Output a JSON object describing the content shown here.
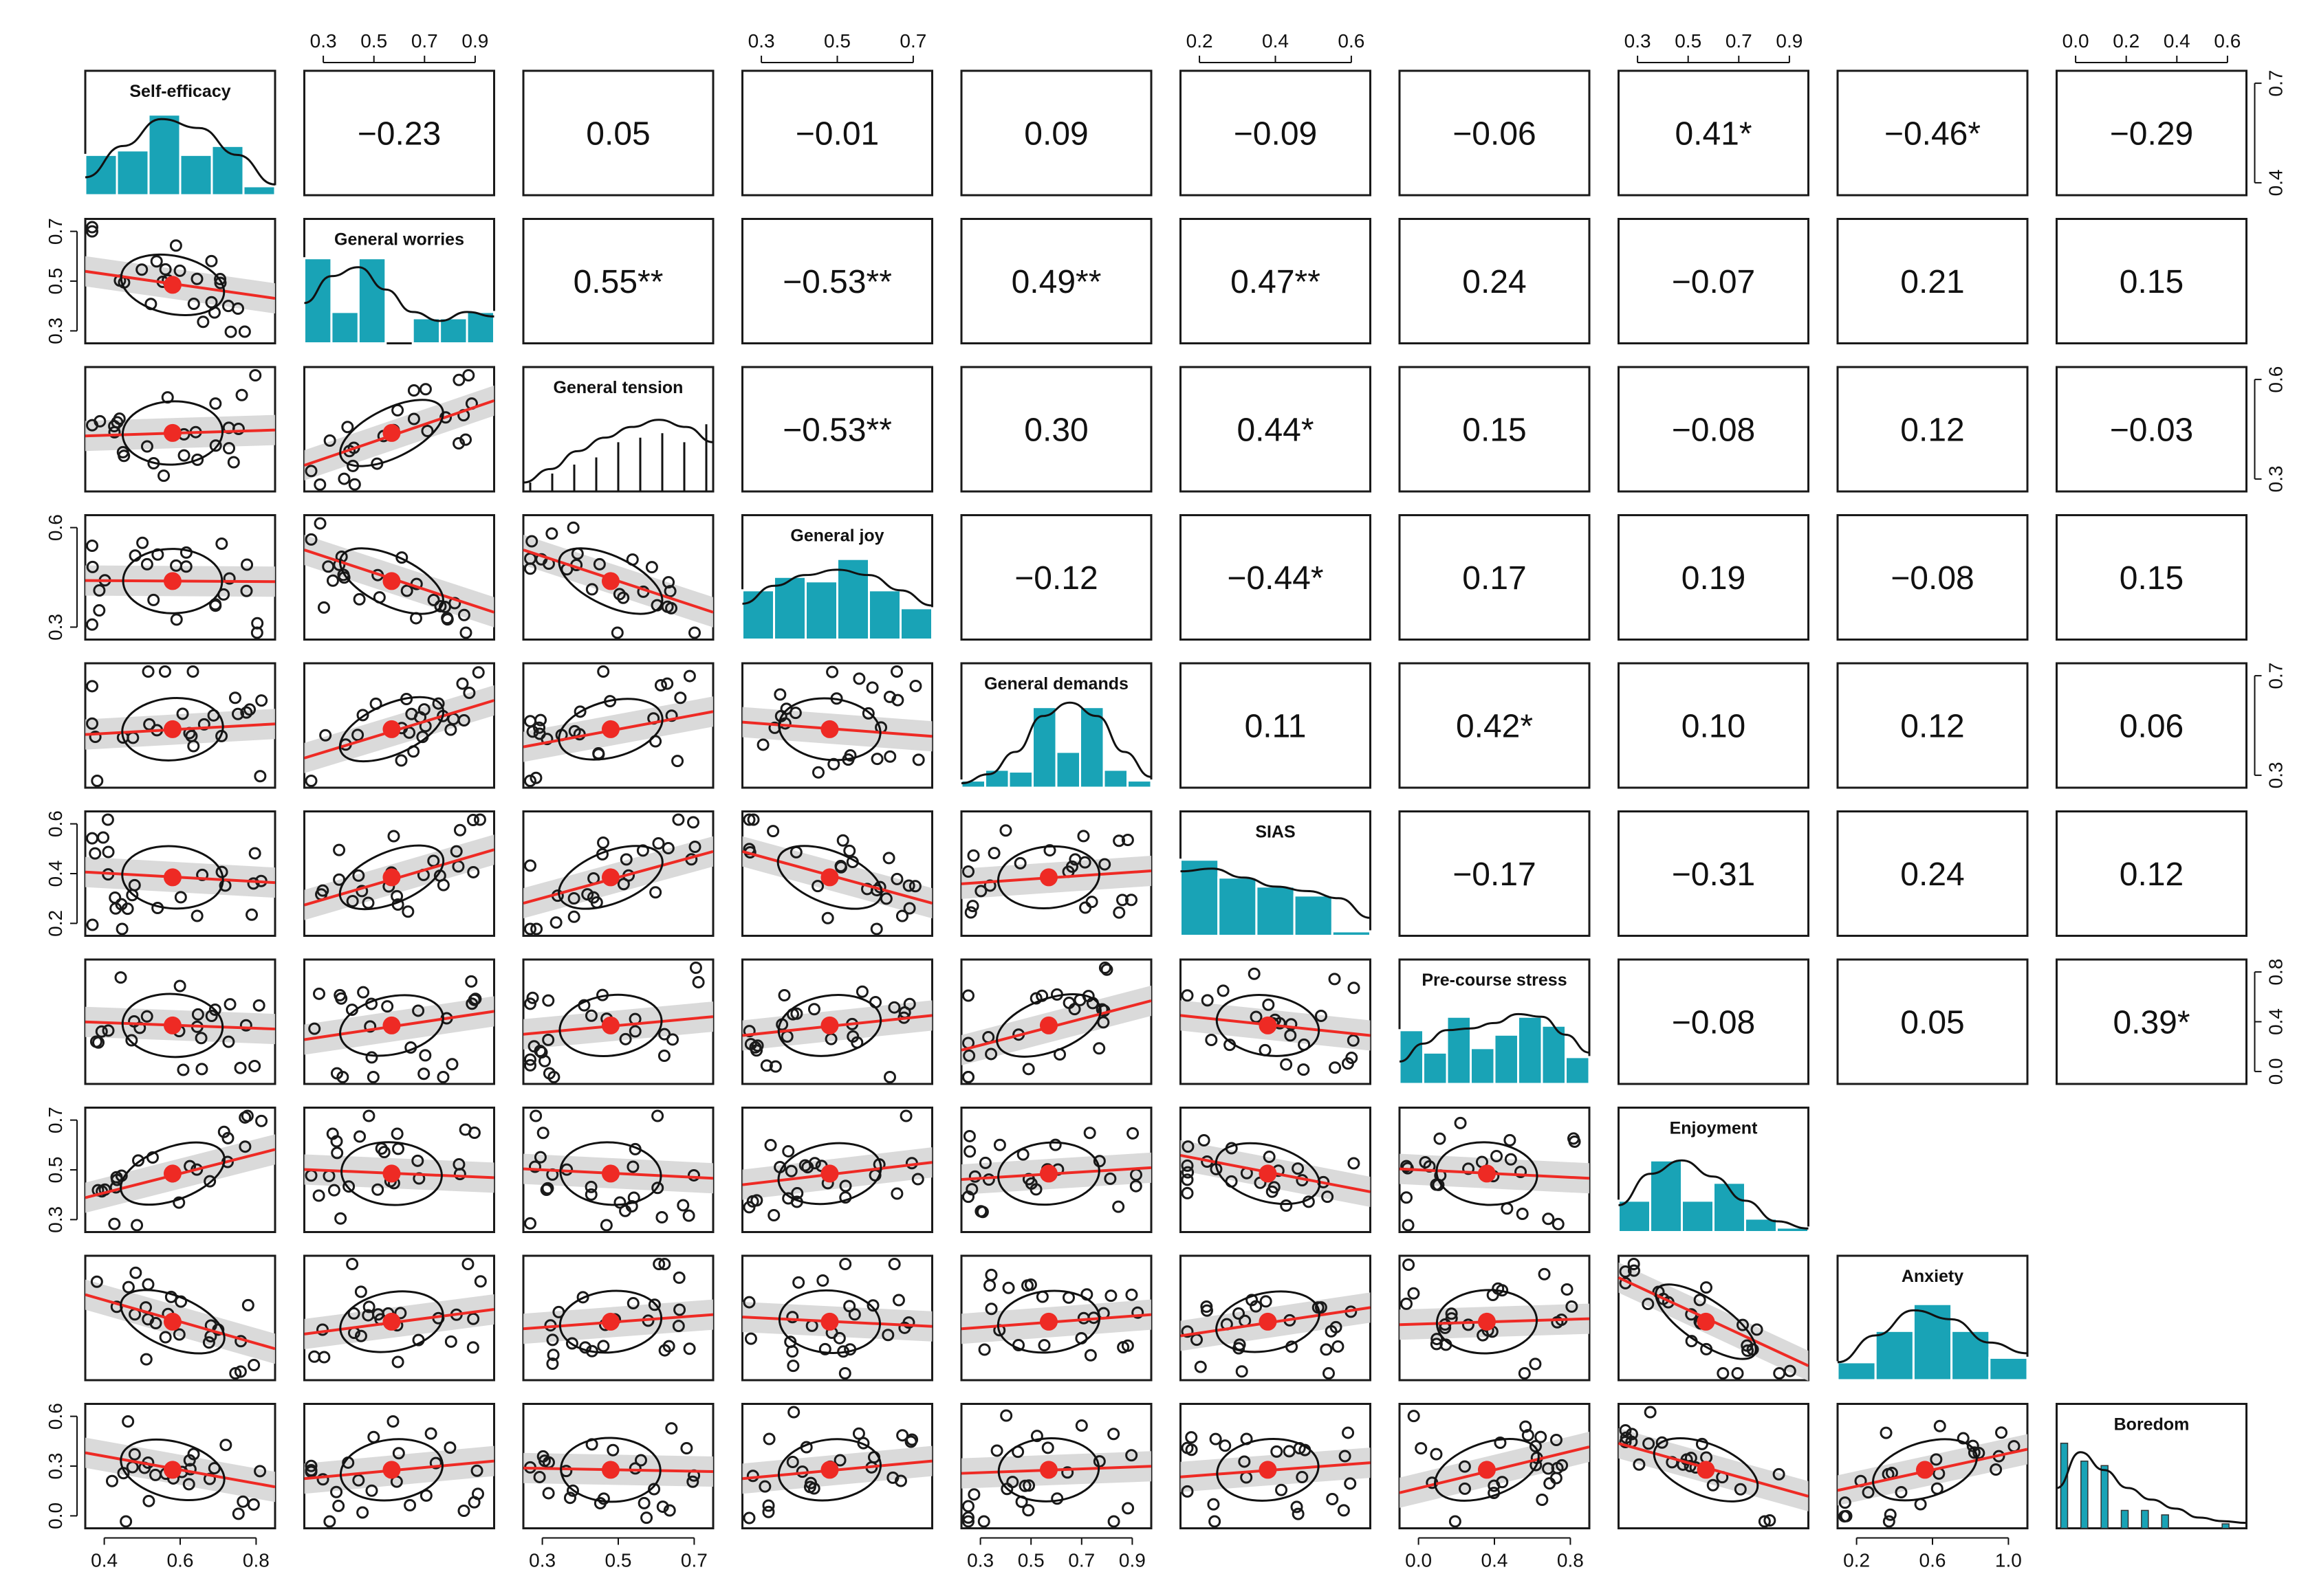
{
  "figure": {
    "variables": [
      "Self-efficacy",
      "General worries",
      "General tension",
      "General joy",
      "General demands",
      "SIAS",
      "Pre-course stress",
      "Enjoyment",
      "Anxiety",
      "Boredom"
    ]
  },
  "colors": {
    "bar": "#19a3b6",
    "fit_line": "#ee2a24",
    "center_point": "#ee2a24",
    "ci_band": "#d6d6d6",
    "points": "#1a1a1a",
    "frame": "#1a1a1a"
  },
  "chart_data": {
    "type": "scatter",
    "subtype": "scatterplot-matrix (pairs panels)",
    "grid": false,
    "correlations_upper": [
      [
        "",
        "-0.23",
        "0.05",
        "-0.01",
        "0.09",
        "-0.09",
        "-0.06",
        "0.41*",
        "-0.46*",
        "-0.29"
      ],
      [
        "",
        "",
        "0.55**",
        "-0.53**",
        "0.49**",
        "0.47**",
        "0.24",
        "-0.07",
        "0.21",
        "0.15"
      ],
      [
        "",
        "",
        "",
        "-0.53**",
        "0.30",
        "0.44*",
        "0.15",
        "-0.08",
        "0.12",
        "-0.03"
      ],
      [
        "",
        "",
        "",
        "",
        "-0.12",
        "-0.44*",
        "0.17",
        "0.19",
        "-0.08",
        "0.15"
      ],
      [
        "",
        "",
        "",
        "",
        "",
        "0.11",
        "0.42*",
        "0.10",
        "0.12",
        "0.06"
      ],
      [
        "",
        "",
        "",
        "",
        "",
        "",
        "-0.17",
        "-0.31",
        "0.24",
        "0.12"
      ],
      [
        "",
        "",
        "",
        "",
        "",
        "",
        "",
        "-0.08",
        "0.05",
        "0.39*"
      ],
      [
        "",
        "",
        "",
        "",
        "",
        "",
        "",
        "",
        "",
        ""
      ],
      [
        "",
        "",
        "",
        "",
        "",
        "",
        "",
        "",
        "",
        ""
      ],
      [
        "",
        "",
        "",
        "",
        "",
        "",
        "",
        "",
        "",
        ""
      ]
    ],
    "diagonal": [
      {
        "label": "Self-efficacy",
        "type": "histogram",
        "bars": [
          0.45,
          0.5,
          0.9,
          0.45,
          0.55,
          0.1
        ],
        "density": [
          0.2,
          0.55,
          0.85,
          0.75,
          0.45,
          0.12
        ]
      },
      {
        "label": "General worries",
        "type": "histogram",
        "bars": [
          0.95,
          0.35,
          0.95,
          0.0,
          0.28,
          0.28,
          0.35
        ],
        "density": [
          0.45,
          0.75,
          0.85,
          0.6,
          0.35,
          0.25,
          0.35,
          0.3
        ]
      },
      {
        "label": "General tension",
        "type": "histogram",
        "bars": [
          0.1,
          0.2,
          0.3,
          0.38,
          0.55,
          0.6,
          0.65,
          0.55,
          0.75
        ],
        "density": [
          0.1,
          0.25,
          0.45,
          0.6,
          0.72,
          0.8,
          0.72,
          0.55
        ]
      },
      {
        "label": "General joy",
        "type": "histogram",
        "bars": [
          0.55,
          0.7,
          0.65,
          0.9,
          0.55,
          0.35
        ],
        "density": [
          0.4,
          0.6,
          0.72,
          0.78,
          0.72,
          0.55,
          0.38
        ]
      },
      {
        "label": "General demands",
        "type": "histogram",
        "bars": [
          0.08,
          0.2,
          0.18,
          0.9,
          0.4,
          0.9,
          0.2,
          0.08
        ],
        "density": [
          0.05,
          0.15,
          0.4,
          0.8,
          0.95,
          0.8,
          0.4,
          0.12
        ]
      },
      {
        "label": "SIAS",
        "type": "histogram",
        "bars": [
          0.85,
          0.65,
          0.55,
          0.45,
          0.05
        ],
        "density": [
          0.72,
          0.75,
          0.65,
          0.55,
          0.5,
          0.42,
          0.2
        ]
      },
      {
        "label": "Pre-course stress",
        "type": "histogram",
        "bars": [
          0.6,
          0.35,
          0.75,
          0.4,
          0.55,
          0.75,
          0.65,
          0.3
        ],
        "density": [
          0.25,
          0.45,
          0.6,
          0.62,
          0.68,
          0.78,
          0.75,
          0.55,
          0.35
        ]
      },
      {
        "label": "Enjoyment",
        "type": "histogram",
        "bars": [
          0.35,
          0.8,
          0.35,
          0.55,
          0.15,
          0.05
        ],
        "density": [
          0.3,
          0.65,
          0.8,
          0.62,
          0.35,
          0.12,
          0.04
        ]
      },
      {
        "label": "Anxiety",
        "type": "histogram",
        "bars": [
          0.2,
          0.55,
          0.85,
          0.55,
          0.25
        ],
        "density": [
          0.2,
          0.5,
          0.78,
          0.68,
          0.42,
          0.3
        ]
      },
      {
        "label": "Boredom",
        "type": "histogram",
        "bars": [
          0.95,
          0.75,
          0.7,
          0.2,
          0.2,
          0.15,
          0.0,
          0.0,
          0.05
        ],
        "density": [
          0.45,
          0.85,
          0.65,
          0.45,
          0.32,
          0.22,
          0.12,
          0.08,
          0.06
        ]
      }
    ],
    "lower_panels": [
      {
        "row": 1,
        "col": 0,
        "slope": -0.23,
        "seed": 11
      },
      {
        "row": 2,
        "col": 0,
        "slope": 0.05,
        "seed": 12
      },
      {
        "row": 3,
        "col": 0,
        "slope": -0.01,
        "seed": 13
      },
      {
        "row": 4,
        "col": 0,
        "slope": 0.09,
        "seed": 14
      },
      {
        "row": 5,
        "col": 0,
        "slope": -0.09,
        "seed": 15
      },
      {
        "row": 6,
        "col": 0,
        "slope": -0.06,
        "seed": 16
      },
      {
        "row": 7,
        "col": 0,
        "slope": 0.41,
        "seed": 17
      },
      {
        "row": 8,
        "col": 0,
        "slope": -0.46,
        "seed": 18
      },
      {
        "row": 9,
        "col": 0,
        "slope": -0.29,
        "seed": 19
      },
      {
        "row": 2,
        "col": 1,
        "slope": 0.55,
        "seed": 21
      },
      {
        "row": 3,
        "col": 1,
        "slope": -0.53,
        "seed": 22
      },
      {
        "row": 4,
        "col": 1,
        "slope": 0.49,
        "seed": 23
      },
      {
        "row": 5,
        "col": 1,
        "slope": 0.47,
        "seed": 24
      },
      {
        "row": 6,
        "col": 1,
        "slope": 0.24,
        "seed": 25
      },
      {
        "row": 7,
        "col": 1,
        "slope": -0.07,
        "seed": 26
      },
      {
        "row": 8,
        "col": 1,
        "slope": 0.21,
        "seed": 27
      },
      {
        "row": 9,
        "col": 1,
        "slope": 0.15,
        "seed": 28
      },
      {
        "row": 3,
        "col": 2,
        "slope": -0.53,
        "seed": 31
      },
      {
        "row": 4,
        "col": 2,
        "slope": 0.3,
        "seed": 32
      },
      {
        "row": 5,
        "col": 2,
        "slope": 0.44,
        "seed": 33
      },
      {
        "row": 6,
        "col": 2,
        "slope": 0.15,
        "seed": 34
      },
      {
        "row": 7,
        "col": 2,
        "slope": -0.08,
        "seed": 35
      },
      {
        "row": 8,
        "col": 2,
        "slope": 0.12,
        "seed": 36
      },
      {
        "row": 9,
        "col": 2,
        "slope": -0.03,
        "seed": 37
      },
      {
        "row": 4,
        "col": 3,
        "slope": -0.12,
        "seed": 41
      },
      {
        "row": 5,
        "col": 3,
        "slope": -0.44,
        "seed": 42
      },
      {
        "row": 6,
        "col": 3,
        "slope": 0.17,
        "seed": 43
      },
      {
        "row": 7,
        "col": 3,
        "slope": 0.19,
        "seed": 44
      },
      {
        "row": 8,
        "col": 3,
        "slope": -0.08,
        "seed": 45
      },
      {
        "row": 9,
        "col": 3,
        "slope": 0.15,
        "seed": 46
      },
      {
        "row": 5,
        "col": 4,
        "slope": 0.11,
        "seed": 51
      },
      {
        "row": 6,
        "col": 4,
        "slope": 0.42,
        "seed": 52
      },
      {
        "row": 7,
        "col": 4,
        "slope": 0.1,
        "seed": 53
      },
      {
        "row": 8,
        "col": 4,
        "slope": 0.12,
        "seed": 54
      },
      {
        "row": 9,
        "col": 4,
        "slope": 0.06,
        "seed": 55
      },
      {
        "row": 6,
        "col": 5,
        "slope": -0.17,
        "seed": 61
      },
      {
        "row": 7,
        "col": 5,
        "slope": -0.31,
        "seed": 62
      },
      {
        "row": 8,
        "col": 5,
        "slope": 0.24,
        "seed": 63
      },
      {
        "row": 9,
        "col": 5,
        "slope": 0.12,
        "seed": 64
      },
      {
        "row": 7,
        "col": 6,
        "slope": -0.08,
        "seed": 71
      },
      {
        "row": 8,
        "col": 6,
        "slope": 0.05,
        "seed": 72
      },
      {
        "row": 9,
        "col": 6,
        "slope": 0.39,
        "seed": 73
      },
      {
        "row": 8,
        "col": 7,
        "slope": -0.75,
        "seed": 81
      },
      {
        "row": 9,
        "col": 7,
        "slope": -0.45,
        "seed": 82
      },
      {
        "row": 9,
        "col": 8,
        "slope": 0.35,
        "seed": 91
      }
    ],
    "axes": {
      "top": [
        {
          "col": 1,
          "ticks": [
            "0.3",
            "0.5",
            "0.7",
            "0.9"
          ]
        },
        {
          "col": 3,
          "ticks": [
            "0.3",
            "0.5",
            "0.7"
          ]
        },
        {
          "col": 5,
          "ticks": [
            "0.2",
            "0.4",
            "0.6"
          ]
        },
        {
          "col": 7,
          "ticks": [
            "0.3",
            "0.5",
            "0.7",
            "0.9"
          ]
        },
        {
          "col": 9,
          "ticks": [
            "0.0",
            "0.2",
            "0.4",
            "0.6"
          ]
        }
      ],
      "bottom": [
        {
          "col": 0,
          "ticks": [
            "0.4",
            "0.6",
            "0.8"
          ]
        },
        {
          "col": 2,
          "ticks": [
            "0.3",
            "0.5",
            "0.7"
          ]
        },
        {
          "col": 4,
          "ticks": [
            "0.3",
            "0.5",
            "0.7",
            "0.9"
          ]
        },
        {
          "col": 6,
          "ticks": [
            "0.0",
            "0.4",
            "0.8"
          ]
        },
        {
          "col": 8,
          "ticks": [
            "0.2",
            "0.6",
            "1.0"
          ]
        }
      ],
      "left": [
        {
          "row": 1,
          "ticks": [
            "0.3",
            "0.5",
            "0.7"
          ]
        },
        {
          "row": 3,
          "ticks": [
            "0.3",
            "0.6"
          ]
        },
        {
          "row": 5,
          "ticks": [
            "0.2",
            "0.4",
            "0.6"
          ]
        },
        {
          "row": 7,
          "ticks": [
            "0.3",
            "0.5",
            "0.7"
          ]
        },
        {
          "row": 9,
          "ticks": [
            "0.0",
            "0.3",
            "0.6"
          ]
        }
      ],
      "right": [
        {
          "row": 0,
          "ticks": [
            "0.4",
            "0.7"
          ]
        },
        {
          "row": 2,
          "ticks": [
            "0.3",
            "0.6"
          ]
        },
        {
          "row": 4,
          "ticks": [
            "0.3",
            "0.7"
          ]
        },
        {
          "row": 6,
          "ticks": [
            "0.0",
            "0.4",
            "0.8"
          ]
        }
      ]
    }
  }
}
